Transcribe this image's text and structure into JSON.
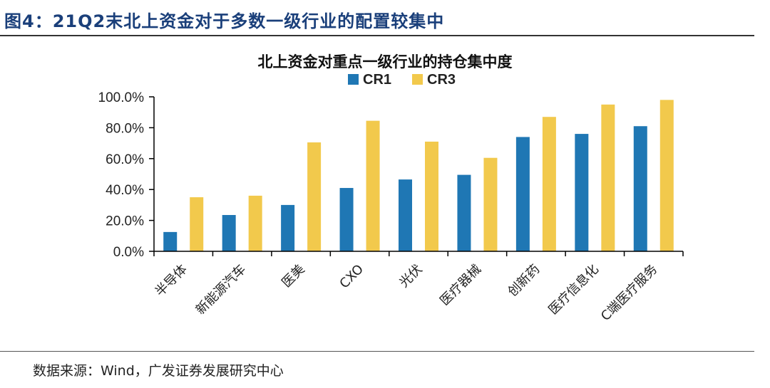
{
  "figure": {
    "title": "图4：21Q2末北上资金对于多数一级行业的配置较集中",
    "source": "数据来源：Wind，广发证券发展研究中心"
  },
  "colors": {
    "cr1": "#1f77b4",
    "cr3": "#f2c94c"
  },
  "chart_data": {
    "type": "bar",
    "title": "北上资金对重点一级行业的持仓集中度",
    "xlabel": "",
    "ylabel": "",
    "categories": [
      "半导体",
      "新能源汽车",
      "医美",
      "CXO",
      "光伏",
      "医疗器械",
      "创新药",
      "医疗信息化",
      "C端医疗服务"
    ],
    "series": [
      {
        "name": "CR1",
        "values": [
          12.5,
          23.5,
          30.0,
          41.0,
          46.5,
          49.5,
          74.0,
          76.0,
          81.0
        ]
      },
      {
        "name": "CR3",
        "values": [
          35.0,
          36.0,
          70.5,
          84.5,
          71.0,
          60.5,
          87.0,
          95.0,
          98.0
        ]
      }
    ],
    "yticks": [
      "0.0%",
      "20.0%",
      "40.0%",
      "60.0%",
      "80.0%",
      "100.0%"
    ],
    "ylim": [
      0,
      100
    ],
    "grid": false,
    "legend": "top"
  }
}
